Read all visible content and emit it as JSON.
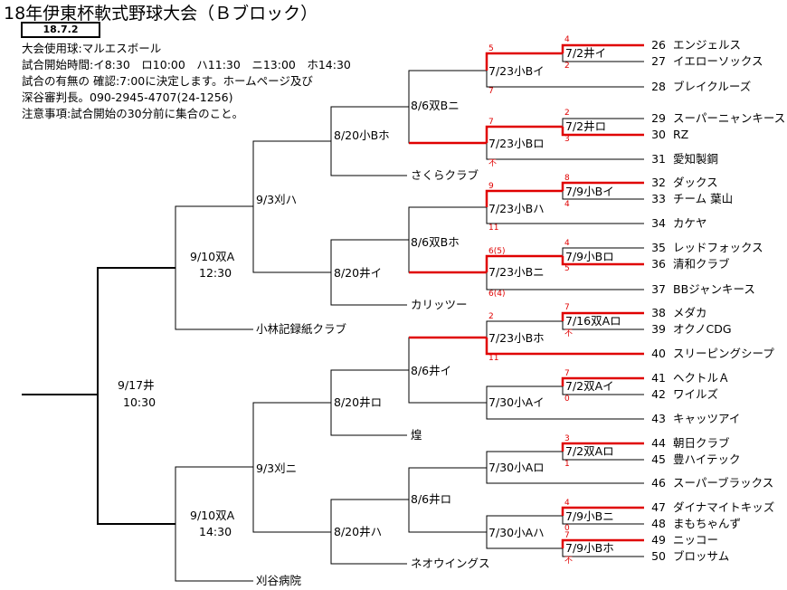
{
  "title": "18年伊東杯軟式野球大会（Ｂブロック）",
  "date": "18.7.2",
  "notes": [
    "大会使用球:マルエスボール",
    "試合開始時間:イ8:30　ロ10:00　ハ11:30　ニ13:00　ホ14:30",
    "試合の有無の 確認:7:00に決定します。ホームページ及び",
    "深谷審判長。090-2945-4707(24-1256)",
    "注意事項:試合開始の30分前に集合のこと。"
  ],
  "teams": [
    {
      "no": "26",
      "name": "エンジェルス"
    },
    {
      "no": "27",
      "name": "イエローソックス"
    },
    {
      "no": "28",
      "name": "ブレイクルーズ"
    },
    {
      "no": "29",
      "name": "スーパーニャンキース"
    },
    {
      "no": "30",
      "name": "RZ"
    },
    {
      "no": "31",
      "name": "愛知製鋼"
    },
    {
      "no": "32",
      "name": "ダックス"
    },
    {
      "no": "33",
      "name": "チーム 葉山"
    },
    {
      "no": "34",
      "name": "カケヤ"
    },
    {
      "no": "35",
      "name": "レッドフォックス"
    },
    {
      "no": "36",
      "name": "清和クラブ"
    },
    {
      "no": "37",
      "name": "BBジャンキース"
    },
    {
      "no": "38",
      "name": "メダカ"
    },
    {
      "no": "39",
      "name": "オクノCDG"
    },
    {
      "no": "40",
      "name": "スリーピングシープ"
    },
    {
      "no": "41",
      "name": "ヘクトルＡ"
    },
    {
      "no": "42",
      "name": "ワイルズ"
    },
    {
      "no": "43",
      "name": "キャッツアイ"
    },
    {
      "no": "44",
      "name": "朝日クラブ"
    },
    {
      "no": "45",
      "name": "豊ハイテック"
    },
    {
      "no": "46",
      "name": "スーパーブラックス"
    },
    {
      "no": "47",
      "name": "ダイナマイトキッズ"
    },
    {
      "no": "48",
      "name": "まもちゃんず"
    },
    {
      "no": "49",
      "name": "ニッコー"
    },
    {
      "no": "50",
      "name": "ブロッサム"
    }
  ],
  "seeded": {
    "sakura": "さくらクラブ",
    "karitsu": "カリッツー",
    "kobayashi": "小林記録紙クラブ",
    "ko": "煌",
    "neo": "ネオウイングス",
    "kariya": "刈谷病院"
  },
  "matches": {
    "r1a": "7/2井イ",
    "r1b": "7/2井ロ",
    "r1c": "7/9小Bイ",
    "r1d": "7/9小Bロ",
    "r1e": "7/16双Aロ",
    "r1f": "7/2双Aイ",
    "r1g": "7/2双Aロ",
    "r1h": "7/9小Bニ",
    "r1i": "7/9小Bホ",
    "r2a": "7/23小Bイ",
    "r2b": "7/23小Bロ",
    "r2c": "7/23小Bハ",
    "r2d": "7/23小Bニ",
    "r2e": "7/23小Bホ",
    "r2f": "7/30小Aイ",
    "r2g": "7/30小Aロ",
    "r2h": "7/30小Aハ",
    "r3a": "8/6双Bニ",
    "r3b": "8/6双Bホ",
    "r3c": "8/6井イ",
    "r3d": "8/6井ロ",
    "r4a": "8/20小Bホ",
    "r4b": "8/20井イ",
    "r4c": "8/20井ロ",
    "r4d": "8/20井ハ",
    "r5a": "9/3刈ハ",
    "r5b": "9/3刈ニ",
    "r6a": "9/10双A",
    "r6a_time": "12:30",
    "r6b": "9/10双A",
    "r6b_time": "14:30",
    "final": "9/17井",
    "final_time": "10:30"
  },
  "scores": {
    "s26": "4",
    "s27": "2",
    "s29": "2",
    "s30": "3",
    "s32": "8",
    "s33": "4",
    "s35": "4",
    "s36": "5",
    "s38": "7",
    "s39": "不",
    "s41": "7",
    "s42": "0",
    "s44": "3",
    "s45": "1",
    "s47": "4",
    "s48": "0",
    "s49": "7",
    "s50": "不",
    "q1a": "5",
    "q1b": "7",
    "q2a": "7",
    "q2b": "不",
    "q3a": "9",
    "q3b": "11",
    "q4a": "6(5)",
    "q4b": "6(4)",
    "q5a": "2",
    "q5b": "11"
  },
  "colors": {
    "win": "#e00000",
    "line": "#000000"
  }
}
